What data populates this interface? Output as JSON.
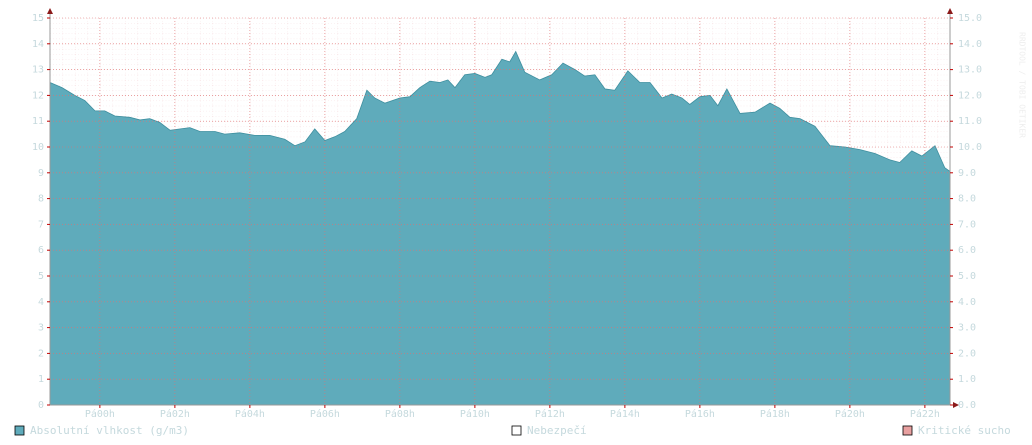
{
  "chart_data": {
    "type": "area",
    "series": [
      {
        "name": "Absolutní vlhkost (g/m3)",
        "color": "#5fabbb",
        "x": [
          -1.33,
          -1.01,
          -0.67,
          -0.4,
          -0.13,
          0.13,
          0.4,
          0.8,
          1.07,
          1.33,
          1.6,
          1.87,
          2.4,
          2.67,
          3.07,
          3.33,
          3.73,
          4.13,
          4.53,
          4.93,
          5.2,
          5.47,
          5.73,
          6.0,
          6.27,
          6.53,
          6.85,
          7.12,
          7.33,
          7.6,
          8.0,
          8.27,
          8.53,
          8.8,
          9.07,
          9.28,
          9.47,
          9.73,
          10.0,
          10.27,
          10.45,
          10.72,
          10.93,
          11.09,
          11.33,
          11.73,
          12.05,
          12.35,
          12.67,
          12.93,
          13.2,
          13.47,
          13.73,
          14.08,
          14.4,
          14.67,
          14.99,
          15.25,
          15.52,
          15.73,
          16.0,
          16.27,
          16.48,
          16.72,
          17.07,
          17.47,
          17.87,
          18.13,
          18.4,
          18.67,
          19.07,
          19.47,
          19.87,
          20.27,
          20.67,
          21.07,
          21.33,
          21.65,
          21.92,
          22.27,
          22.53,
          22.67
        ],
        "values": [
          12.5,
          12.3,
          12.0,
          11.8,
          11.4,
          11.4,
          11.2,
          11.15,
          11.05,
          11.1,
          10.95,
          10.65,
          10.75,
          10.6,
          10.6,
          10.5,
          10.55,
          10.45,
          10.45,
          10.3,
          10.05,
          10.2,
          10.7,
          10.25,
          10.4,
          10.6,
          11.1,
          12.2,
          11.9,
          11.7,
          11.9,
          11.95,
          12.3,
          12.55,
          12.5,
          12.6,
          12.3,
          12.8,
          12.85,
          12.7,
          12.8,
          13.4,
          13.3,
          13.7,
          12.9,
          12.6,
          12.8,
          13.25,
          13.0,
          12.75,
          12.8,
          12.25,
          12.2,
          12.95,
          12.5,
          12.5,
          11.9,
          12.05,
          11.9,
          11.65,
          11.95,
          12.0,
          11.6,
          12.25,
          11.3,
          11.35,
          11.7,
          11.5,
          11.15,
          11.1,
          10.8,
          10.05,
          10.0,
          9.9,
          9.75,
          9.5,
          9.4,
          9.85,
          9.65,
          10.05,
          9.2,
          9.05
        ]
      },
      {
        "name": "Nebezpečí",
        "color": "#ffffff"
      },
      {
        "name": "Kritické sucho",
        "color": "#e8a0a0"
      }
    ],
    "xlim": [
      -1.33,
      22.67
    ],
    "xticks": [
      {
        "value": 0,
        "label": "Pá00h"
      },
      {
        "value": 2,
        "label": "Pá02h"
      },
      {
        "value": 4,
        "label": "Pá04h"
      },
      {
        "value": 6,
        "label": "Pá06h"
      },
      {
        "value": 8,
        "label": "Pá08h"
      },
      {
        "value": 10,
        "label": "Pá10h"
      },
      {
        "value": 12,
        "label": "Pá12h"
      },
      {
        "value": 14,
        "label": "Pá14h"
      },
      {
        "value": 16,
        "label": "Pá16h"
      },
      {
        "value": 18,
        "label": "Pá18h"
      },
      {
        "value": 20,
        "label": "Pá20h"
      },
      {
        "value": 22,
        "label": "Pá22h"
      }
    ],
    "ylim": [
      0,
      15
    ],
    "yticks": [
      0,
      1,
      2,
      3,
      4,
      5,
      6,
      7,
      8,
      9,
      10,
      11,
      12,
      13,
      14,
      15
    ],
    "y2lim": [
      0,
      15
    ],
    "y2ticks": [
      {
        "value": 0,
        "label": "0.0"
      },
      {
        "value": 1,
        "label": "1.0"
      },
      {
        "value": 2,
        "label": "2.0"
      },
      {
        "value": 3,
        "label": "3.0"
      },
      {
        "value": 4,
        "label": "4.0"
      },
      {
        "value": 5,
        "label": "5.0"
      },
      {
        "value": 6,
        "label": "6.0"
      },
      {
        "value": 7,
        "label": "7.0"
      },
      {
        "value": 8,
        "label": "8.0"
      },
      {
        "value": 9,
        "label": "9.0"
      },
      {
        "value": 10,
        "label": "10.0"
      },
      {
        "value": 11,
        "label": "11.0"
      },
      {
        "value": 12,
        "label": "12.0"
      },
      {
        "value": 13,
        "label": "13.0"
      },
      {
        "value": 14,
        "label": "14.0"
      },
      {
        "value": 15,
        "label": "15.0"
      }
    ],
    "grid": true,
    "watermark": "RRDTOOL / TOBI OETIKER"
  }
}
